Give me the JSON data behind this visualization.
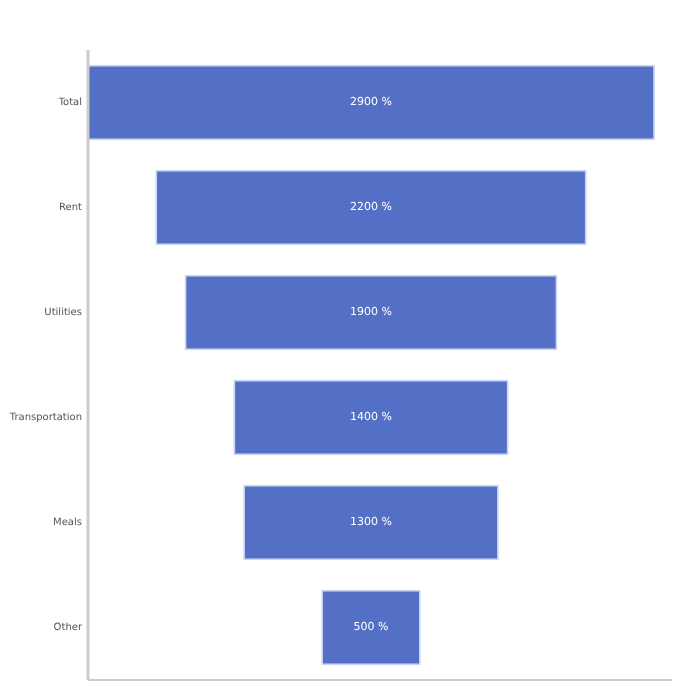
{
  "chart_data": {
    "type": "other",
    "categories": [
      "Total",
      "Rent",
      "Utilities",
      "Transportation",
      "Meals",
      "Other"
    ],
    "values": [
      2900,
      2200,
      1900,
      1400,
      1300,
      500
    ],
    "value_labels": [
      "2900 %",
      "2200 %",
      "1900 %",
      "1400 %",
      "1300 %",
      "500 %"
    ],
    "color": "#5470c6"
  }
}
